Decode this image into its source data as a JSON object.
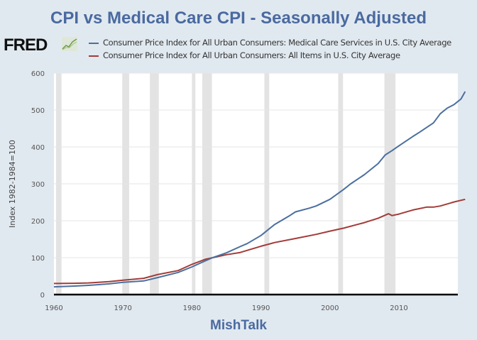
{
  "header": {
    "title": "CPI vs Medical Care CPI - Seasonally Adjusted",
    "logo_text": "FRED",
    "logo_icon": "chart-line-icon"
  },
  "footer": {
    "text": "MishTalk"
  },
  "colors": {
    "medical": "#4b6f9e",
    "all_items": "#a23c38",
    "recession": "#e3e3e3",
    "title": "#4a6aa0"
  },
  "chart_data": {
    "type": "line",
    "title": "CPI vs Medical Care CPI - Seasonally Adjusted",
    "xlabel": "",
    "ylabel": "Index 1982-1984=100",
    "xlim": [
      1960,
      2019.6
    ],
    "ylim": [
      0,
      600
    ],
    "grid": true,
    "legend_position": "top",
    "x_ticks": [
      1960,
      1970,
      1980,
      1990,
      2000,
      2010
    ],
    "y_ticks": [
      0,
      100,
      200,
      300,
      400,
      500,
      600
    ],
    "recessions": [
      [
        1960.3,
        1961.1
      ],
      [
        1969.9,
        1970.9
      ],
      [
        1973.9,
        1975.2
      ],
      [
        1980.0,
        1980.5
      ],
      [
        1981.5,
        1982.9
      ],
      [
        1990.5,
        1991.2
      ],
      [
        2001.2,
        2001.9
      ],
      [
        2007.9,
        2009.5
      ]
    ],
    "series": [
      {
        "name": "Consumer Price Index for All Urban Consumers: Medical Care Services in U.S. City Average",
        "color": "#4b6f9e",
        "x": [
          1960,
          1963,
          1965,
          1968,
          1970,
          1973,
          1975,
          1978,
          1980,
          1982,
          1983,
          1985,
          1987,
          1988,
          1990,
          1992,
          1994,
          1995,
          1997,
          1998,
          2000,
          2002,
          2003,
          2005,
          2007,
          2008,
          2009,
          2010,
          2012,
          2013,
          2015,
          2016,
          2017,
          2018,
          2019,
          2019.6
        ],
        "values": [
          21,
          23,
          25,
          29,
          33,
          37,
          46,
          60,
          75,
          92,
          100,
          113,
          130,
          138,
          160,
          190,
          212,
          224,
          234,
          240,
          258,
          285,
          300,
          325,
          355,
          378,
          390,
          403,
          428,
          440,
          465,
          490,
          505,
          515,
          530,
          550
        ]
      },
      {
        "name": "Consumer Price Index for All Urban Consumers: All Items in U.S. City Average",
        "color": "#a23c38",
        "x": [
          1960,
          1963,
          1965,
          1968,
          1970,
          1973,
          1975,
          1978,
          1980,
          1982,
          1983,
          1985,
          1987,
          1990,
          1992,
          1995,
          1998,
          2000,
          2002,
          2005,
          2007,
          2008.5,
          2009,
          2010,
          2012,
          2014,
          2015,
          2016,
          2018,
          2019.6
        ],
        "values": [
          30,
          30.5,
          31.5,
          35,
          39,
          44,
          54,
          65,
          82,
          96,
          100,
          108,
          114,
          131,
          141,
          152,
          163,
          172,
          180,
          195,
          207,
          219,
          214,
          218,
          229,
          237,
          237,
          240,
          251,
          258
        ]
      }
    ]
  }
}
